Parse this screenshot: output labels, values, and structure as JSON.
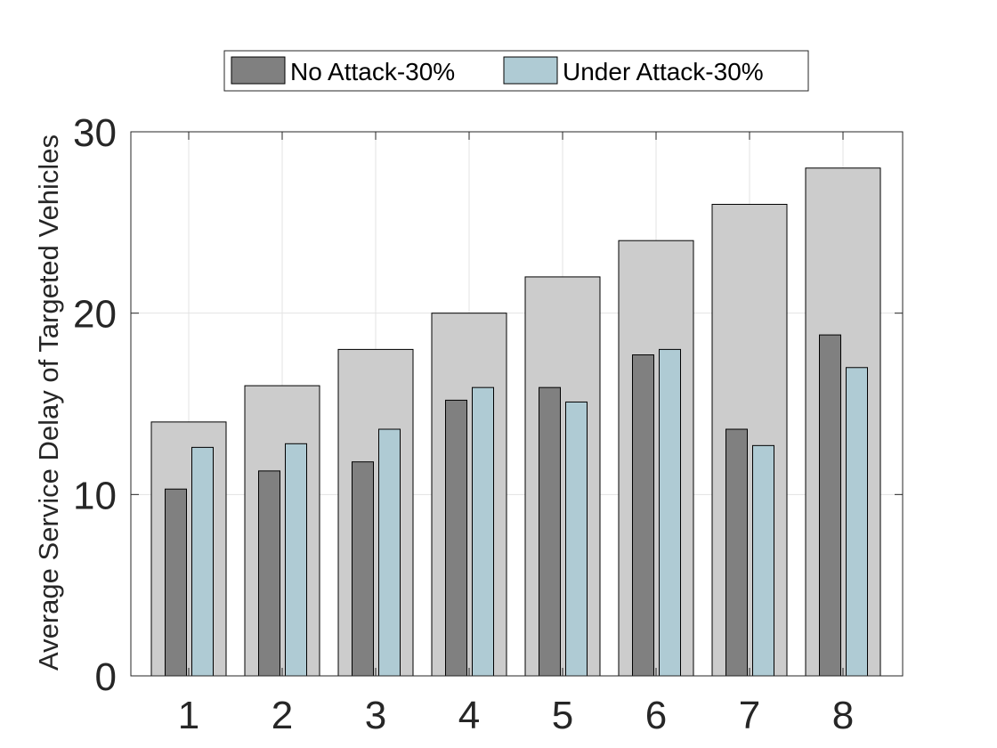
{
  "chart_data": {
    "type": "bar",
    "categories": [
      "1",
      "2",
      "3",
      "4",
      "5",
      "6",
      "7",
      "8"
    ],
    "background_values": [
      14,
      16,
      18,
      20,
      22,
      24,
      26,
      28
    ],
    "series": [
      {
        "name": "No Attack-30%",
        "color": "#808080",
        "values": [
          10.3,
          11.3,
          11.8,
          15.2,
          15.9,
          17.7,
          13.6,
          18.8
        ]
      },
      {
        "name": "Under Attack-30%",
        "color": "#afcbd4",
        "values": [
          12.6,
          12.8,
          13.6,
          15.9,
          15.1,
          18.0,
          12.7,
          17.0
        ]
      }
    ],
    "background_color": "#cccccc",
    "xlabel": "",
    "ylabel": "Average Service Delay of Targeted Vehicles",
    "ylim": [
      0,
      30
    ],
    "yticks": [
      "0",
      "10",
      "20",
      "30"
    ],
    "grid": true,
    "legend_position": "top-center"
  }
}
